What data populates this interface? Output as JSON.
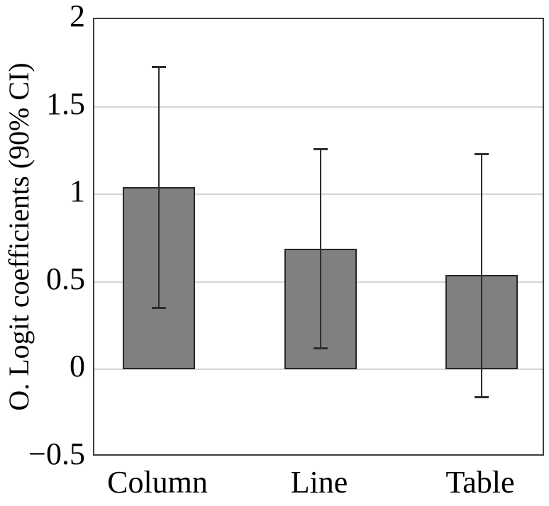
{
  "chart_data": {
    "type": "bar",
    "title": "",
    "categories": [
      "Column",
      "Line",
      "Table"
    ],
    "values": [
      1.04,
      0.69,
      0.54
    ],
    "ci90": [
      [
        0.35,
        1.73
      ],
      [
        0.12,
        1.26
      ],
      [
        -0.16,
        1.23
      ]
    ],
    "error_bars": "90% confidence intervals, capped whiskers",
    "xlabel": "",
    "ylabel": "O. Logit coefficients (90% CI)",
    "ylim": [
      -0.5,
      2
    ],
    "yticks": [
      2,
      1.5,
      1,
      0.5,
      0,
      -0.5
    ],
    "ytick_labels": [
      "2",
      "1.5",
      "1",
      "0.5",
      "0",
      "−0.5"
    ],
    "grid": "horizontal, light, at interior ticks only",
    "legend": "none",
    "colors": {
      "background": "#ffffff",
      "bar_fill": "#808080",
      "bar_border": "#262626",
      "error_bar": "#2e2e2e",
      "gridline": "#d5d5d5",
      "axis_frame": "#3c3c3c",
      "text": "#000000"
    }
  }
}
